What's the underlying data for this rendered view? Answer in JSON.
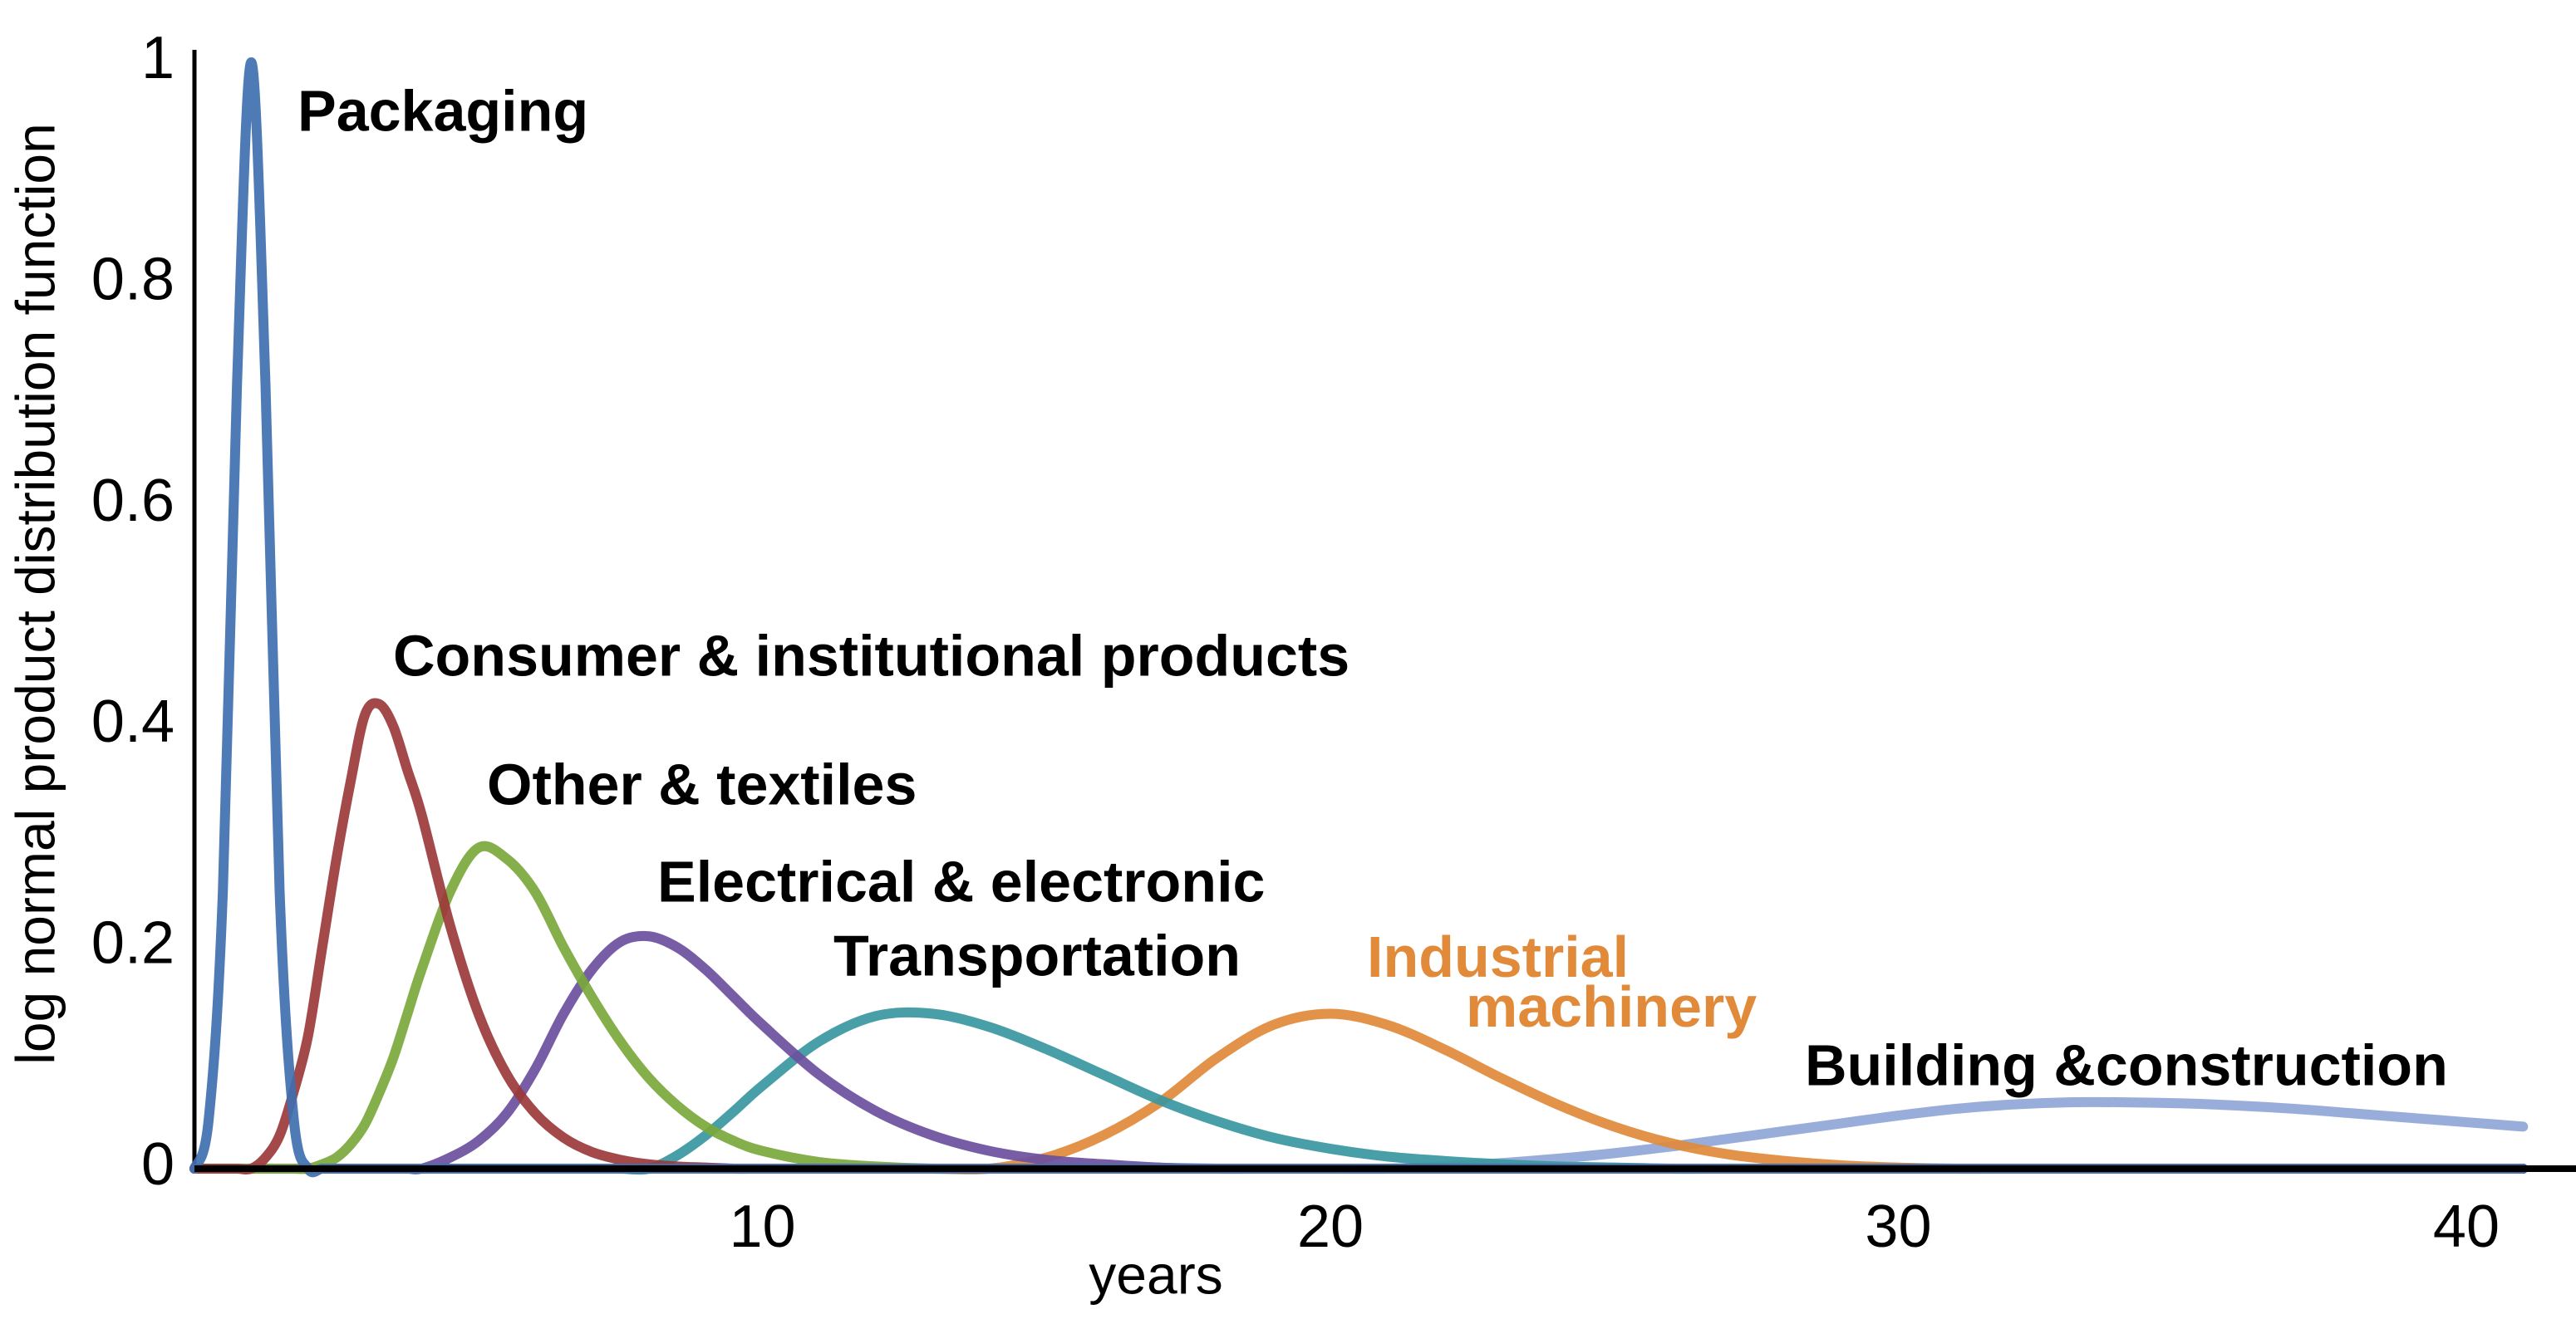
{
  "chart_data": {
    "type": "line",
    "y_label": "log normal product distribution function",
    "x_label": "years",
    "x": [
      0,
      0.25,
      0.5,
      0.75,
      1,
      1.25,
      1.5,
      1.75,
      2,
      2.25,
      2.5,
      2.75,
      3,
      3.25,
      3.5,
      3.75,
      4,
      4.5,
      5,
      5.5,
      6,
      6.5,
      7,
      7.5,
      8,
      8.5,
      9,
      9.5,
      10,
      11,
      12,
      13,
      14,
      15,
      16,
      17,
      18,
      19,
      20,
      21,
      22,
      23,
      24,
      25,
      26,
      27,
      28,
      29,
      30,
      31,
      32,
      33,
      34,
      35,
      36,
      37,
      38,
      39,
      40,
      41
    ],
    "xlim": [
      0,
      41.8
    ],
    "ylim": [
      0,
      1
    ],
    "xticks": [
      10,
      20,
      30,
      40
    ],
    "yticks": [
      0,
      0.2,
      0.4,
      0.6,
      0.8,
      1
    ],
    "grid": false,
    "series": [
      {
        "name": "Packaging",
        "color": "#3f6fb0",
        "values": [
          0,
          0.044,
          0.25,
          0.71,
          1,
          0.71,
          0.25,
          0.044,
          0,
          0,
          0,
          0,
          0,
          0,
          0,
          0,
          0,
          0,
          0,
          0,
          0,
          0,
          0,
          0,
          0,
          0,
          0,
          0,
          0,
          0,
          0,
          0,
          0,
          0,
          0,
          0,
          0,
          0,
          0,
          0,
          0,
          0,
          0,
          0,
          0,
          0,
          0,
          0,
          0,
          0,
          0,
          0,
          0,
          0,
          0,
          0,
          0,
          0,
          0,
          0
        ]
      },
      {
        "name": "Consumer & institutional products",
        "color": "#9b3a3a",
        "values": [
          0,
          0,
          0,
          0,
          0,
          0.01,
          0.03,
          0.07,
          0.12,
          0.2,
          0.28,
          0.35,
          0.41,
          0.42,
          0.4,
          0.36,
          0.32,
          0.22,
          0.14,
          0.085,
          0.05,
          0.028,
          0.015,
          0.008,
          0.004,
          0.002,
          0.001,
          0,
          0,
          0,
          0,
          0,
          0,
          0,
          0,
          0,
          0,
          0,
          0,
          0,
          0,
          0,
          0,
          0,
          0,
          0,
          0,
          0,
          0,
          0,
          0,
          0,
          0,
          0,
          0,
          0,
          0,
          0,
          0,
          0
        ]
      },
      {
        "name": "Other & textiles",
        "color": "#79a83b",
        "values": [
          0,
          0,
          0,
          0,
          0,
          0,
          0,
          0,
          0,
          0.004,
          0.01,
          0.022,
          0.04,
          0.068,
          0.1,
          0.14,
          0.18,
          0.25,
          0.29,
          0.28,
          0.25,
          0.2,
          0.155,
          0.115,
          0.082,
          0.057,
          0.038,
          0.025,
          0.016,
          0.006,
          0.002,
          0,
          0,
          0,
          0,
          0,
          0,
          0,
          0,
          0,
          0,
          0,
          0,
          0,
          0,
          0,
          0,
          0,
          0,
          0,
          0,
          0,
          0,
          0,
          0,
          0,
          0,
          0,
          0,
          0
        ]
      },
      {
        "name": "Electrical & electronic",
        "color": "#6b4f9e",
        "values": [
          0,
          0,
          0,
          0,
          0,
          0,
          0,
          0,
          0,
          0,
          0,
          0,
          0,
          0,
          0,
          0,
          0,
          0.01,
          0.025,
          0.05,
          0.09,
          0.14,
          0.18,
          0.205,
          0.21,
          0.2,
          0.18,
          0.155,
          0.13,
          0.085,
          0.052,
          0.03,
          0.016,
          0.008,
          0.004,
          0.001,
          0,
          0,
          0,
          0,
          0,
          0,
          0,
          0,
          0,
          0,
          0,
          0,
          0,
          0,
          0,
          0,
          0,
          0,
          0,
          0,
          0,
          0,
          0,
          0
        ]
      },
      {
        "name": "Transportation",
        "color": "#3a979f",
        "values": [
          0,
          0,
          0,
          0,
          0,
          0,
          0,
          0,
          0,
          0,
          0,
          0,
          0,
          0,
          0,
          0,
          0,
          0,
          0,
          0,
          0,
          0,
          0,
          0,
          0,
          0.012,
          0.03,
          0.052,
          0.075,
          0.115,
          0.138,
          0.14,
          0.128,
          0.108,
          0.085,
          0.062,
          0.043,
          0.028,
          0.018,
          0.011,
          0.007,
          0.004,
          0.002,
          0.001,
          0,
          0,
          0,
          0,
          0,
          0,
          0,
          0,
          0,
          0,
          0,
          0,
          0,
          0,
          0,
          0
        ]
      },
      {
        "name": "Industrial machinery",
        "color": "#e08a3a",
        "values": [
          0,
          0,
          0,
          0,
          0,
          0,
          0,
          0,
          0,
          0,
          0,
          0,
          0,
          0,
          0,
          0,
          0,
          0,
          0,
          0,
          0,
          0,
          0,
          0,
          0,
          0,
          0,
          0,
          0,
          0,
          0,
          0,
          0,
          0.01,
          0.03,
          0.06,
          0.1,
          0.13,
          0.14,
          0.13,
          0.108,
          0.082,
          0.058,
          0.038,
          0.023,
          0.013,
          0.007,
          0.003,
          0.001,
          0,
          0,
          0,
          0,
          0,
          0,
          0,
          0,
          0,
          0,
          0
        ]
      },
      {
        "name": "Building &construction",
        "color": "#8fa6d6",
        "values": [
          0,
          0,
          0,
          0,
          0,
          0,
          0,
          0,
          0,
          0,
          0,
          0,
          0,
          0,
          0,
          0,
          0,
          0,
          0,
          0,
          0,
          0,
          0,
          0,
          0,
          0,
          0,
          0,
          0,
          0,
          0,
          0,
          0,
          0,
          0,
          0,
          0,
          0,
          0,
          0,
          0.002,
          0.005,
          0.009,
          0.014,
          0.02,
          0.027,
          0.034,
          0.041,
          0.048,
          0.054,
          0.058,
          0.06,
          0.06,
          0.059,
          0.057,
          0.054,
          0.05,
          0.046,
          0.042,
          0.038
        ]
      }
    ]
  }
}
